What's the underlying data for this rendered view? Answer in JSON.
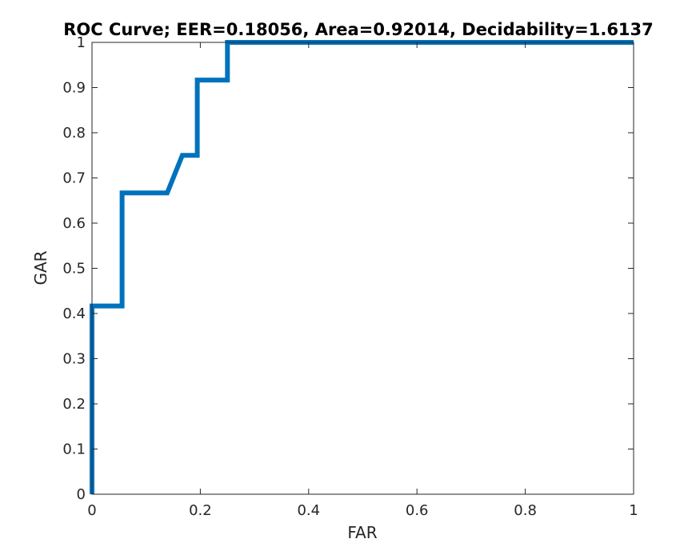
{
  "chart_data": {
    "type": "line",
    "title": "ROC Curve;   EER=0.18056,   Area=0.92014,   Decidability=1.6137",
    "xlabel": "FAR",
    "ylabel": "GAR",
    "xlim": [
      0,
      1
    ],
    "ylim": [
      0,
      1
    ],
    "xticks": [
      0,
      0.2,
      0.4,
      0.6,
      0.8,
      1
    ],
    "xtick_labels": [
      "0",
      "0.2",
      "0.4",
      "0.6",
      "0.8",
      "1"
    ],
    "yticks": [
      0,
      0.1,
      0.2,
      0.3,
      0.4,
      0.5,
      0.6,
      0.7,
      0.8,
      0.9,
      1
    ],
    "ytick_labels": [
      "0",
      "0.1",
      "0.2",
      "0.3",
      "0.4",
      "0.5",
      "0.6",
      "0.7",
      "0.8",
      "0.9",
      "1"
    ],
    "grid": false,
    "series": [
      {
        "color": "#0072BD",
        "x": [
          0,
          0,
          0.0556,
          0.0556,
          0.1389,
          0.1667,
          0.1944,
          0.1944,
          0.25,
          0.25,
          1
        ],
        "y": [
          0,
          0.4167,
          0.4167,
          0.6667,
          0.6667,
          0.75,
          0.75,
          0.9167,
          0.9167,
          1,
          1
        ]
      }
    ]
  }
}
